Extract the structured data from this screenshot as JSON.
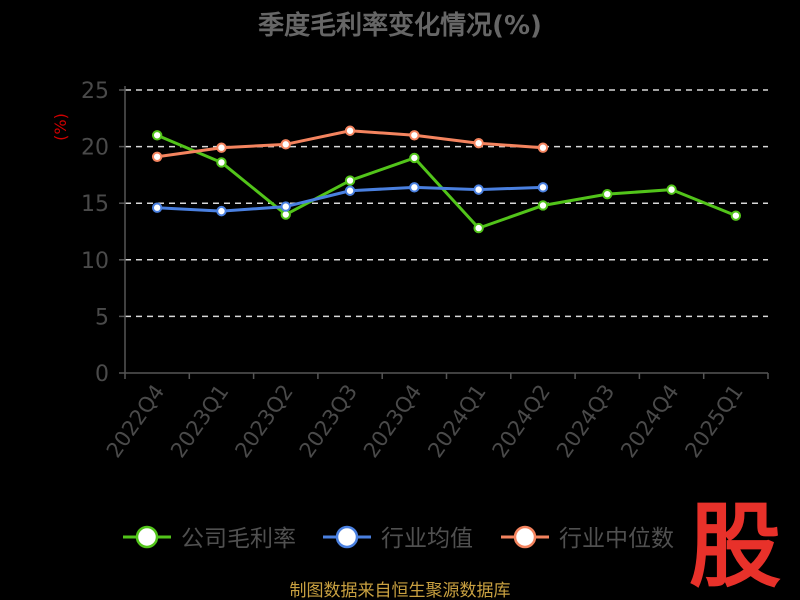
{
  "chart_data": {
    "type": "line",
    "title": "季度毛利率变化情况(%)",
    "ylabel": "(%)",
    "xlabel": "",
    "ylim": [
      0,
      25
    ],
    "yticks": [
      0,
      5,
      10,
      15,
      20,
      25
    ],
    "grid": true,
    "legend_position": "bottom",
    "categories": [
      "2022Q4",
      "2023Q1",
      "2023Q2",
      "2023Q3",
      "2023Q4",
      "2024Q1",
      "2024Q2",
      "2024Q3",
      "2024Q4",
      "2025Q1"
    ],
    "series": [
      {
        "name": "公司毛利率",
        "color": "#52c41a",
        "values": [
          21.0,
          18.6,
          14.0,
          17.0,
          19.0,
          12.8,
          14.8,
          15.8,
          16.2,
          13.9
        ]
      },
      {
        "name": "行业均值",
        "color": "#4a80e0",
        "values": [
          14.6,
          14.3,
          14.7,
          16.1,
          16.4,
          16.2,
          16.4,
          null,
          null,
          null
        ]
      },
      {
        "name": "行业中位数",
        "color": "#f4845f",
        "values": [
          19.1,
          19.9,
          20.2,
          21.4,
          21.0,
          20.3,
          19.9,
          null,
          null,
          null
        ]
      }
    ]
  },
  "footer": "制图数据来自恒生聚源数据库",
  "brand": "股"
}
